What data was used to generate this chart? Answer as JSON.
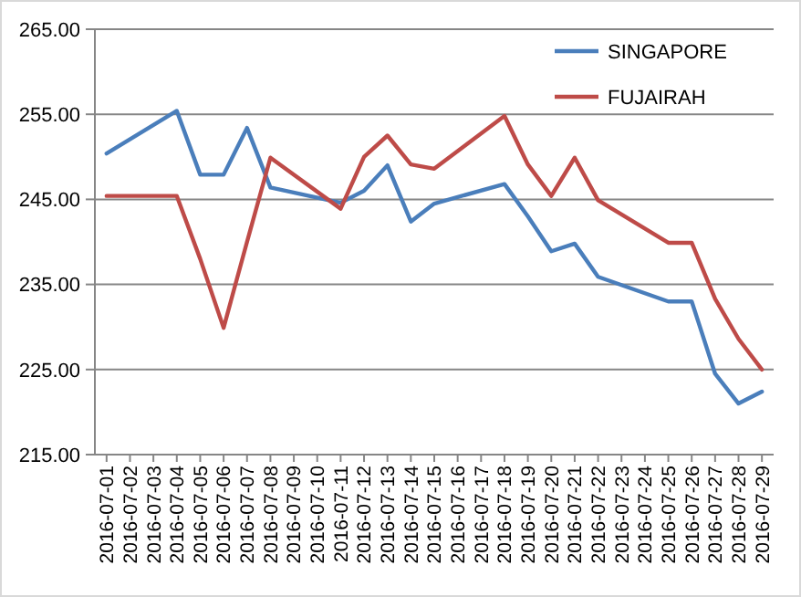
{
  "chart_data": {
    "type": "line",
    "x": [
      "2016-07-01",
      "2016-07-04",
      "2016-07-05",
      "2016-07-06",
      "2016-07-07",
      "2016-07-08",
      "2016-07-11",
      "2016-07-12",
      "2016-07-13",
      "2016-07-14",
      "2016-07-15",
      "2016-07-18",
      "2016-07-19",
      "2016-07-20",
      "2016-07-21",
      "2016-07-22",
      "2016-07-25",
      "2016-07-26",
      "2016-07-27",
      "2016-07-28",
      "2016-07-29"
    ],
    "series": [
      {
        "name": "SINGAPORE",
        "color": "#4a7ebb",
        "values": [
          250.4,
          255.4,
          247.9,
          247.9,
          253.4,
          246.4,
          244.6,
          246.0,
          249.0,
          242.4,
          244.5,
          246.8,
          243.0,
          238.9,
          239.8,
          235.9,
          233.0,
          233.0,
          224.5,
          221.0,
          222.4
        ]
      },
      {
        "name": "FUJAIRAH",
        "color": "#be4b48",
        "values": [
          245.4,
          245.4,
          238.0,
          229.9,
          240.0,
          249.9,
          243.9,
          250.0,
          252.5,
          249.1,
          248.6,
          254.8,
          249.1,
          245.4,
          249.9,
          244.9,
          239.9,
          239.9,
          233.3,
          228.6,
          225.0
        ]
      }
    ],
    "xlim": [
      "2016-06-30T12:00",
      "2016-07-29T12:00"
    ],
    "xticks": [
      {
        "value": "2016-07-01",
        "label": "2016-07-01"
      },
      {
        "value": "2016-07-02",
        "label": "2016-07-02"
      },
      {
        "value": "2016-07-03",
        "label": "2016-07-03"
      },
      {
        "value": "2016-07-04",
        "label": "2016-07-04"
      },
      {
        "value": "2016-07-05",
        "label": "2016-07-05"
      },
      {
        "value": "2016-07-06",
        "label": "2016-07-06"
      },
      {
        "value": "2016-07-07",
        "label": "2016-07-07"
      },
      {
        "value": "2016-07-08",
        "label": "2016-07-08"
      },
      {
        "value": "2016-07-09",
        "label": "2016-07-09"
      },
      {
        "value": "2016-07-10",
        "label": "2016-07-10"
      },
      {
        "value": "2016-07-11",
        "label": "2016-07-11"
      },
      {
        "value": "2016-07-12",
        "label": "2016-07-12"
      },
      {
        "value": "2016-07-13",
        "label": "2016-07-13"
      },
      {
        "value": "2016-07-14",
        "label": "2016-07-14"
      },
      {
        "value": "2016-07-15",
        "label": "2016-07-15"
      },
      {
        "value": "2016-07-16",
        "label": "2016-07-16"
      },
      {
        "value": "2016-07-17",
        "label": "2016-07-17"
      },
      {
        "value": "2016-07-18",
        "label": "2016-07-18"
      },
      {
        "value": "2016-07-19",
        "label": "2016-07-19"
      },
      {
        "value": "2016-07-20",
        "label": "2016-07-20"
      },
      {
        "value": "2016-07-21",
        "label": "2016-07-21"
      },
      {
        "value": "2016-07-22",
        "label": "2016-07-22"
      },
      {
        "value": "2016-07-23",
        "label": "2016-07-23"
      },
      {
        "value": "2016-07-24",
        "label": "2016-07-24"
      },
      {
        "value": "2016-07-25",
        "label": "2016-07-25"
      },
      {
        "value": "2016-07-26",
        "label": "2016-07-26"
      },
      {
        "value": "2016-07-27",
        "label": "2016-07-27"
      },
      {
        "value": "2016-07-28",
        "label": "2016-07-28"
      },
      {
        "value": "2016-07-29",
        "label": "2016-07-29"
      }
    ],
    "ylim": [
      215,
      265
    ],
    "yticks": [
      {
        "value": 215,
        "label": "215.00"
      },
      {
        "value": 225,
        "label": "225.00"
      },
      {
        "value": 235,
        "label": "235.00"
      },
      {
        "value": 245,
        "label": "245.00"
      },
      {
        "value": 255,
        "label": "255.00"
      },
      {
        "value": 265,
        "label": "265.00"
      }
    ],
    "grid": "y",
    "legend": "top right",
    "marker": "none",
    "line_style": "solid"
  }
}
